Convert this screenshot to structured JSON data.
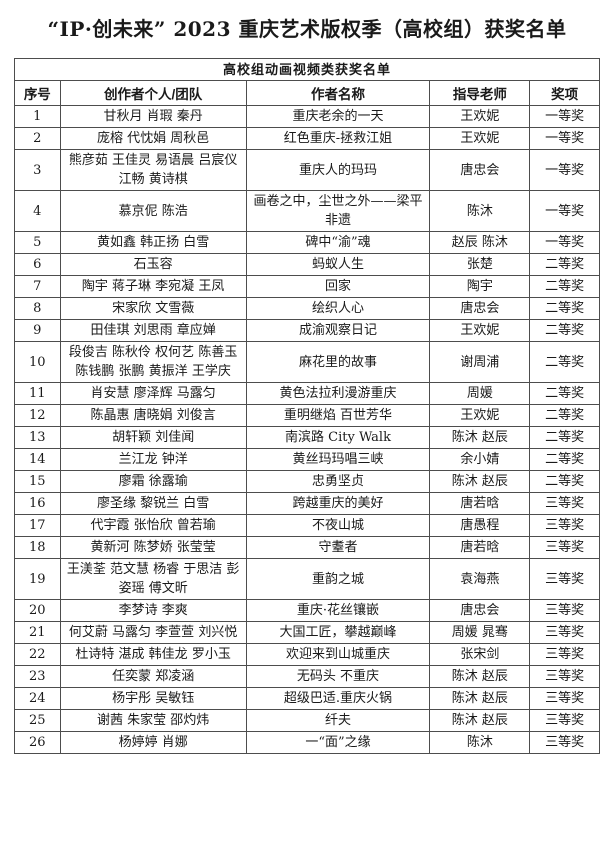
{
  "page_title": "“IP·创未来” 2023 重庆艺术版权季（高校组）获奖名单",
  "table": {
    "caption": "高校组动画视频类获奖名单",
    "columns": [
      "序号",
      "创作者个人/团队",
      "作者名称",
      "指导老师",
      "奖项"
    ],
    "column_keys": [
      "no",
      "creators",
      "work",
      "advisors",
      "award"
    ],
    "rows": [
      [
        "1",
        "甘秋月 肖瑕 秦丹",
        "重庆老余的一天",
        "王欢妮",
        "一等奖"
      ],
      [
        "2",
        "庞榕 代忱娟 周秋邑",
        "红色重庆-拯救江姐",
        "王欢妮",
        "一等奖"
      ],
      [
        "3",
        "熊彦茹 王佳灵 易语晨 吕宸仪 江畅 黄诗棋",
        "重庆人的玛玛",
        "唐忠会",
        "一等奖"
      ],
      [
        "4",
        "慕京伲 陈浩",
        "画卷之中，尘世之外——梁平非遗",
        "陈沐",
        "一等奖"
      ],
      [
        "5",
        "黄如鑫 韩正扬 白雪",
        "碑中“渝”魂",
        "赵辰 陈沐",
        "一等奖"
      ],
      [
        "6",
        "石玉容",
        "蚂蚁人生",
        "张楚",
        "二等奖"
      ],
      [
        "7",
        "陶宇 蒋子琳 李宛凝 王凤",
        "回家",
        "陶宇",
        "二等奖"
      ],
      [
        "8",
        "宋家欣 文雪薇",
        "绘织人心",
        "唐忠会",
        "二等奖"
      ],
      [
        "9",
        "田佳琪 刘思雨 章应婵",
        "成渝观察日记",
        "王欢妮",
        "二等奖"
      ],
      [
        "10",
        "段俊吉 陈秋伶 权何艺 陈善玉 陈钱鹏 张鹏 黄振洋 王学庆",
        "麻花里的故事",
        "谢周浦",
        "二等奖"
      ],
      [
        "11",
        "肖安慧 廖泽辉 马露匀",
        "黄色法拉利漫游重庆",
        "周媛",
        "二等奖"
      ],
      [
        "12",
        "陈晶惠 唐晓娟 刘俊言",
        "重明继焰 百世芳华",
        "王欢妮",
        "二等奖"
      ],
      [
        "13",
        "胡轩颖 刘佳闻",
        "南滨路 City Walk",
        "陈沐 赵辰",
        "二等奖"
      ],
      [
        "14",
        "兰江龙 钟洋",
        "黄丝玛玛唱三峡",
        "余小婧",
        "二等奖"
      ],
      [
        "15",
        "廖霜 徐露瑜",
        "忠勇坚贞",
        "陈沐 赵辰",
        "二等奖"
      ],
      [
        "16",
        "廖圣缘 黎锐兰 白雪",
        "跨越重庆的美好",
        "唐若晗",
        "三等奖"
      ],
      [
        "17",
        "代宇霞 张怡欣 曾若瑜",
        "不夜山城",
        "唐愚程",
        "三等奖"
      ],
      [
        "18",
        "黄新河 陈梦娇 张莹莹",
        "守耋者",
        "唐若晗",
        "三等奖"
      ],
      [
        "19",
        "王渼荃 范文慧 杨睿 于思洁 彭姿瑶 傅文昕",
        "重韵之城",
        "袁海燕",
        "三等奖"
      ],
      [
        "20",
        "李梦诗 李爽",
        "重庆·花丝镶嵌",
        "唐忠会",
        "三等奖"
      ],
      [
        "21",
        "何艾蔚 马露匀 李萱萱 刘兴悦",
        "大国工匠，攀越巅峰",
        "周媛 晁骞",
        "三等奖"
      ],
      [
        "22",
        "杜诗特 湛成 韩佳龙 罗小玉",
        "欢迎来到山城重庆",
        "张宋剑",
        "三等奖"
      ],
      [
        "23",
        "任奕蒙 郑凌涵",
        "无码头 不重庆",
        "陈沐 赵辰",
        "三等奖"
      ],
      [
        "24",
        "杨宇彤 吴敏钰",
        "超级巴适.重庆火锅",
        "陈沐 赵辰",
        "三等奖"
      ],
      [
        "25",
        "谢茜 朱家莹 邵灼炜",
        "纤夫",
        "陈沐 赵辰",
        "三等奖"
      ],
      [
        "26",
        "杨婷婷 肖娜",
        "一“面”之缘",
        "陈沐",
        "三等奖"
      ]
    ]
  }
}
